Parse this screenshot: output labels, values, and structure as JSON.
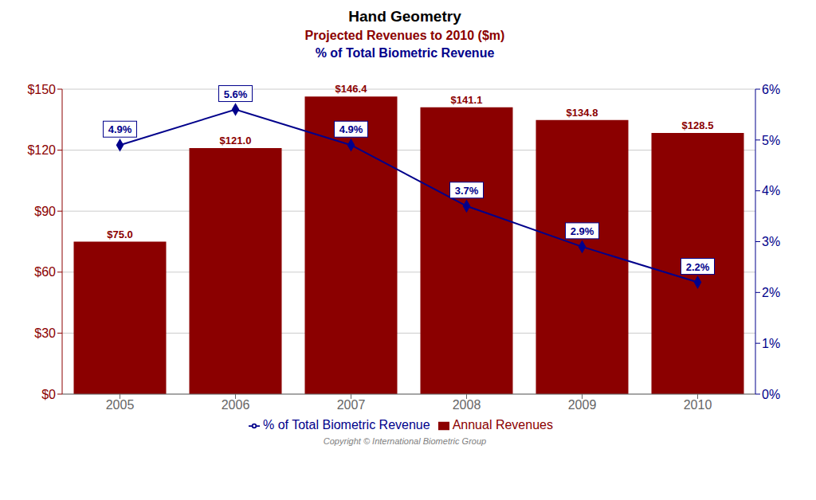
{
  "chart_data": {
    "type": "bar",
    "title": "Hand Geometry",
    "subtitle": "Projected Revenues to 2010 ($m)",
    "subtitle2": "% of Total Biometric Revenue",
    "annotations": [
      "Copyright © International Biometric Group"
    ],
    "categories": [
      "2005",
      "2006",
      "2007",
      "2008",
      "2009",
      "2010"
    ],
    "series": [
      {
        "name": "Annual Revenues",
        "type": "bar",
        "color": "#8B0000",
        "values": [
          75.0,
          121.0,
          146.4,
          141.1,
          134.8,
          128.5
        ],
        "value_labels": [
          "$75.0",
          "$121.0",
          "$146.4",
          "$141.1",
          "$134.8",
          "$128.5"
        ]
      },
      {
        "name": "% of Total Biometric Revenue",
        "type": "line",
        "axis": "y2",
        "color": "#00008B",
        "marker": "diamond",
        "values": [
          4.9,
          5.6,
          4.9,
          3.7,
          2.9,
          2.2
        ],
        "value_labels": [
          "4.9%",
          "5.6%",
          "4.9%",
          "3.7%",
          "2.9%",
          "2.2%"
        ]
      }
    ],
    "ylim": [
      0,
      150
    ],
    "yticks": [
      {
        "value": 0,
        "label": "$0"
      },
      {
        "value": 30,
        "label": "$30"
      },
      {
        "value": 60,
        "label": "$60"
      },
      {
        "value": 90,
        "label": "$90"
      },
      {
        "value": 120,
        "label": "$120"
      },
      {
        "value": 150,
        "label": "$150"
      }
    ],
    "y2lim": [
      0,
      6
    ],
    "y2ticks": [
      {
        "value": 0,
        "label": "0%"
      },
      {
        "value": 1,
        "label": "1%"
      },
      {
        "value": 2,
        "label": "2%"
      },
      {
        "value": 3,
        "label": "3%"
      },
      {
        "value": 4,
        "label": "4%"
      },
      {
        "value": 5,
        "label": "5%"
      },
      {
        "value": 6,
        "label": "6%"
      }
    ],
    "grid": true,
    "data_labels": true,
    "legend": "bottom"
  }
}
